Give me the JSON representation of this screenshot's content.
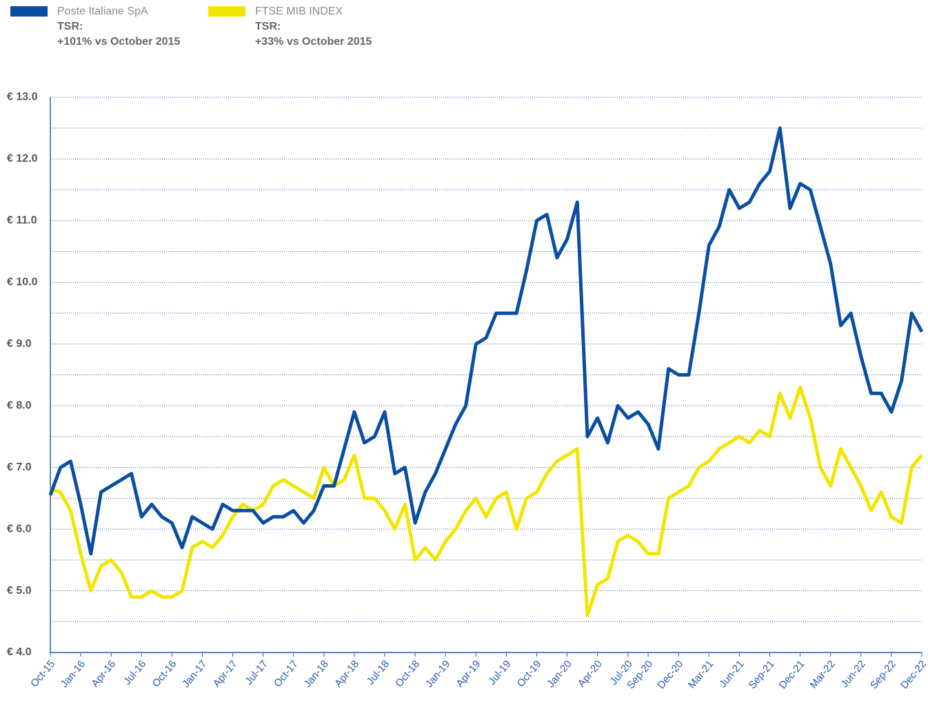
{
  "chart_data": {
    "type": "line",
    "x": [
      "Oct-15",
      "Nov-15",
      "Dec-15",
      "Jan-16",
      "Feb-16",
      "Mar-16",
      "Apr-16",
      "May-16",
      "Jun-16",
      "Jul-16",
      "Aug-16",
      "Sep-16",
      "Oct-16",
      "Nov-16",
      "Dec-16",
      "Jan-17",
      "Feb-17",
      "Mar-17",
      "Apr-17",
      "May-17",
      "Jun-17",
      "Jul-17",
      "Aug-17",
      "Sep-17",
      "Oct-17",
      "Nov-17",
      "Dec-17",
      "Jan-18",
      "Feb-18",
      "Mar-18",
      "Apr-18",
      "May-18",
      "Jun-18",
      "Jul-18",
      "Aug-18",
      "Sep-18",
      "Oct-18",
      "Nov-18",
      "Dec-18",
      "Jan-19",
      "Feb-19",
      "Mar-19",
      "Apr-19",
      "May-19",
      "Jun-19",
      "Jul-19",
      "Aug-19",
      "Sep-19",
      "Oct-19",
      "Nov-19",
      "Dec-19",
      "Jan-20",
      "Feb-20",
      "Mar-20",
      "Apr-20",
      "May-20",
      "Jun-20",
      "Jul-20",
      "Aug-20",
      "Sep-20",
      "Oct-20",
      "Nov-20",
      "Dec-20",
      "Jan-21",
      "Feb-21",
      "Mar-21",
      "Apr-21",
      "May-21",
      "Jun-21",
      "Jul-21",
      "Aug-21",
      "Sep-21",
      "Oct-21",
      "Nov-21",
      "Dec-21",
      "Jan-22",
      "Feb-22",
      "Mar-22",
      "Apr-22",
      "May-22",
      "Jun-22",
      "Jul-22",
      "Aug-22",
      "Sep-22",
      "Oct-22",
      "Nov-22",
      "Dec-22"
    ],
    "series": [
      {
        "name": "Poste Italiane SpA",
        "legend_notes": [
          "TSR:",
          "+101% vs October 2015"
        ],
        "color": "#0a4ea2",
        "values": [
          6.55,
          7.0,
          7.1,
          6.4,
          5.6,
          6.6,
          6.7,
          6.8,
          6.9,
          6.2,
          6.4,
          6.2,
          6.1,
          5.7,
          6.2,
          6.1,
          6.0,
          6.4,
          6.3,
          6.3,
          6.3,
          6.1,
          6.2,
          6.2,
          6.3,
          6.1,
          6.3,
          6.7,
          6.7,
          7.3,
          7.9,
          7.4,
          7.5,
          7.9,
          6.9,
          7.0,
          6.1,
          6.6,
          6.9,
          7.3,
          7.7,
          8.0,
          9.0,
          9.1,
          9.5,
          9.5,
          9.5,
          10.2,
          11.0,
          11.1,
          10.4,
          10.7,
          11.3,
          7.5,
          7.8,
          7.4,
          8.0,
          7.8,
          7.9,
          7.7,
          7.3,
          8.6,
          8.5,
          8.5,
          9.5,
          10.6,
          10.9,
          11.5,
          11.2,
          11.3,
          11.6,
          11.8,
          12.5,
          11.2,
          11.6,
          11.5,
          10.9,
          10.3,
          9.3,
          9.5,
          8.8,
          8.2,
          8.2,
          7.9,
          8.4,
          9.5,
          9.2
        ]
      },
      {
        "name": "FTSE MIB INDEX",
        "legend_notes": [
          "TSR:",
          "+33% vs October 2015"
        ],
        "color": "#f2e600",
        "values": [
          6.65,
          6.6,
          6.3,
          5.6,
          5.0,
          5.4,
          5.5,
          5.3,
          4.9,
          4.9,
          5.0,
          4.9,
          4.9,
          5.0,
          5.7,
          5.8,
          5.7,
          5.9,
          6.2,
          6.4,
          6.3,
          6.4,
          6.7,
          6.8,
          6.7,
          6.6,
          6.5,
          7.0,
          6.7,
          6.8,
          7.2,
          6.5,
          6.5,
          6.3,
          6.0,
          6.4,
          5.5,
          5.7,
          5.5,
          5.8,
          6.0,
          6.3,
          6.5,
          6.2,
          6.5,
          6.6,
          6.0,
          6.5,
          6.6,
          6.9,
          7.1,
          7.2,
          7.3,
          4.6,
          5.1,
          5.2,
          5.8,
          5.9,
          5.8,
          5.6,
          5.6,
          6.5,
          6.6,
          6.7,
          7.0,
          7.1,
          7.3,
          7.4,
          7.5,
          7.4,
          7.6,
          7.5,
          8.2,
          7.8,
          8.3,
          7.8,
          7.0,
          6.7,
          7.3,
          7.0,
          6.7,
          6.3,
          6.6,
          6.2,
          6.1,
          7.0,
          7.2
        ]
      }
    ],
    "xticks": [
      "Oct-15",
      "Jan-16",
      "Apr-16",
      "Jul-16",
      "Oct-16",
      "Jan-17",
      "Apr-17",
      "Jul-17",
      "Oct-17",
      "Jan-18",
      "Apr-18",
      "Jul-18",
      "Oct-18",
      "Jan-19",
      "Apr-19",
      "Jul-19",
      "Oct-19",
      "Jan-20",
      "Apr-20",
      "Jul-20",
      "Sep-20",
      "Dec-20",
      "Mar-21",
      "Jun-21",
      "Sep-21",
      "Dec-21",
      "Mar-22",
      "Jun-22",
      "Sep-22",
      "Dec-22"
    ],
    "ylim": [
      4,
      13
    ],
    "yticks": [
      {
        "value": 4,
        "label": "€ 4.0"
      },
      {
        "value": 5,
        "label": "€ 5.0"
      },
      {
        "value": 6,
        "label": "€ 6.0"
      },
      {
        "value": 7,
        "label": "€ 7.0"
      },
      {
        "value": 8,
        "label": "€ 8.0"
      },
      {
        "value": 9,
        "label": "€ 9.0"
      },
      {
        "value": 10,
        "label": "€ 10.0"
      },
      {
        "value": 11,
        "label": "€ 11.0"
      },
      {
        "value": 12,
        "label": "€ 12.0"
      },
      {
        "value": 13,
        "label": "€ 13.0"
      }
    ],
    "minor_yticks": [
      4.5,
      5.5,
      6.5,
      7.5,
      8.5,
      9.5,
      10.5,
      11.5,
      12.5
    ],
    "grid": true
  }
}
